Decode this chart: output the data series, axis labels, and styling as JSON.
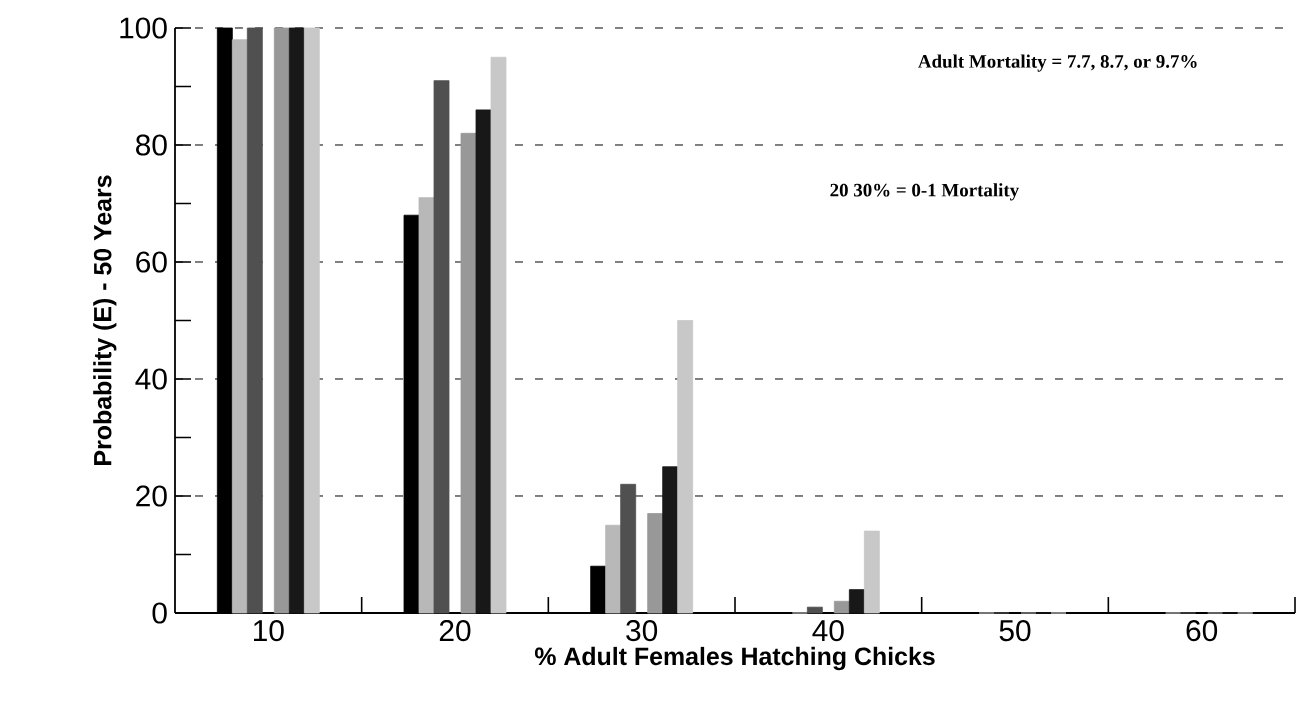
{
  "chart_data": {
    "type": "bar",
    "xlabel": "% Adult Females Hatching Chicks",
    "ylabel": "Probability  (E)  -  50 Years",
    "categories": [
      "10",
      "20",
      "30",
      "40",
      "50",
      "60"
    ],
    "series": [
      {
        "color": "#000000",
        "values": [
          100,
          68,
          8,
          0,
          0,
          0
        ]
      },
      {
        "color": "#b8b8b8",
        "values": [
          98,
          71,
          15,
          0,
          0,
          0
        ]
      },
      {
        "color": "#505050",
        "values": [
          100,
          91,
          22,
          1,
          0,
          0
        ]
      },
      {
        "color": "#989898",
        "values": [
          100,
          82,
          17,
          2,
          0,
          0
        ]
      },
      {
        "color": "#181818",
        "values": [
          100,
          86,
          25,
          4,
          0,
          0
        ]
      },
      {
        "color": "#c8c8c8",
        "values": [
          100,
          95,
          50,
          14,
          0,
          0
        ]
      }
    ],
    "ylim": [
      0,
      100
    ],
    "yticks": [
      0,
      20,
      40,
      60,
      80,
      100
    ],
    "grid": "y",
    "annotations": [
      "Adult Mortality = 7.7,   8.7,  or  9.7%",
      "20   30%  =  0-1 Mortality"
    ]
  }
}
